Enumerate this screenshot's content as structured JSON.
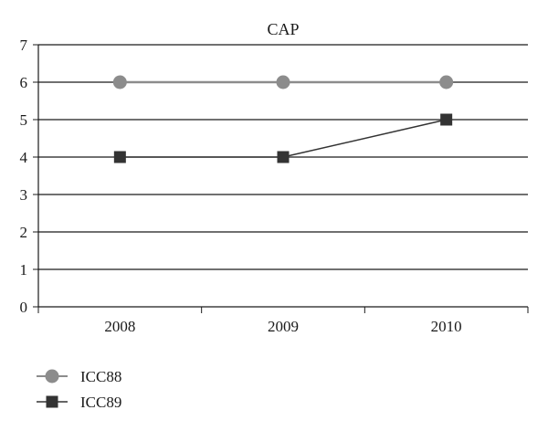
{
  "chart_data": {
    "type": "line",
    "title": "CAP",
    "categories": [
      "2008",
      "2009",
      "2010"
    ],
    "ylim": [
      0,
      7
    ],
    "yticks": [
      0,
      1,
      2,
      3,
      4,
      5,
      6,
      7
    ],
    "grid": true,
    "legend_position": "bottom-left",
    "series": [
      {
        "name": "ICC88",
        "values": [
          6,
          6,
          6
        ],
        "color": "#8c8c8c",
        "marker": "circle"
      },
      {
        "name": "ICC89",
        "values": [
          4,
          4,
          5
        ],
        "color": "#333333",
        "marker": "square"
      }
    ]
  }
}
